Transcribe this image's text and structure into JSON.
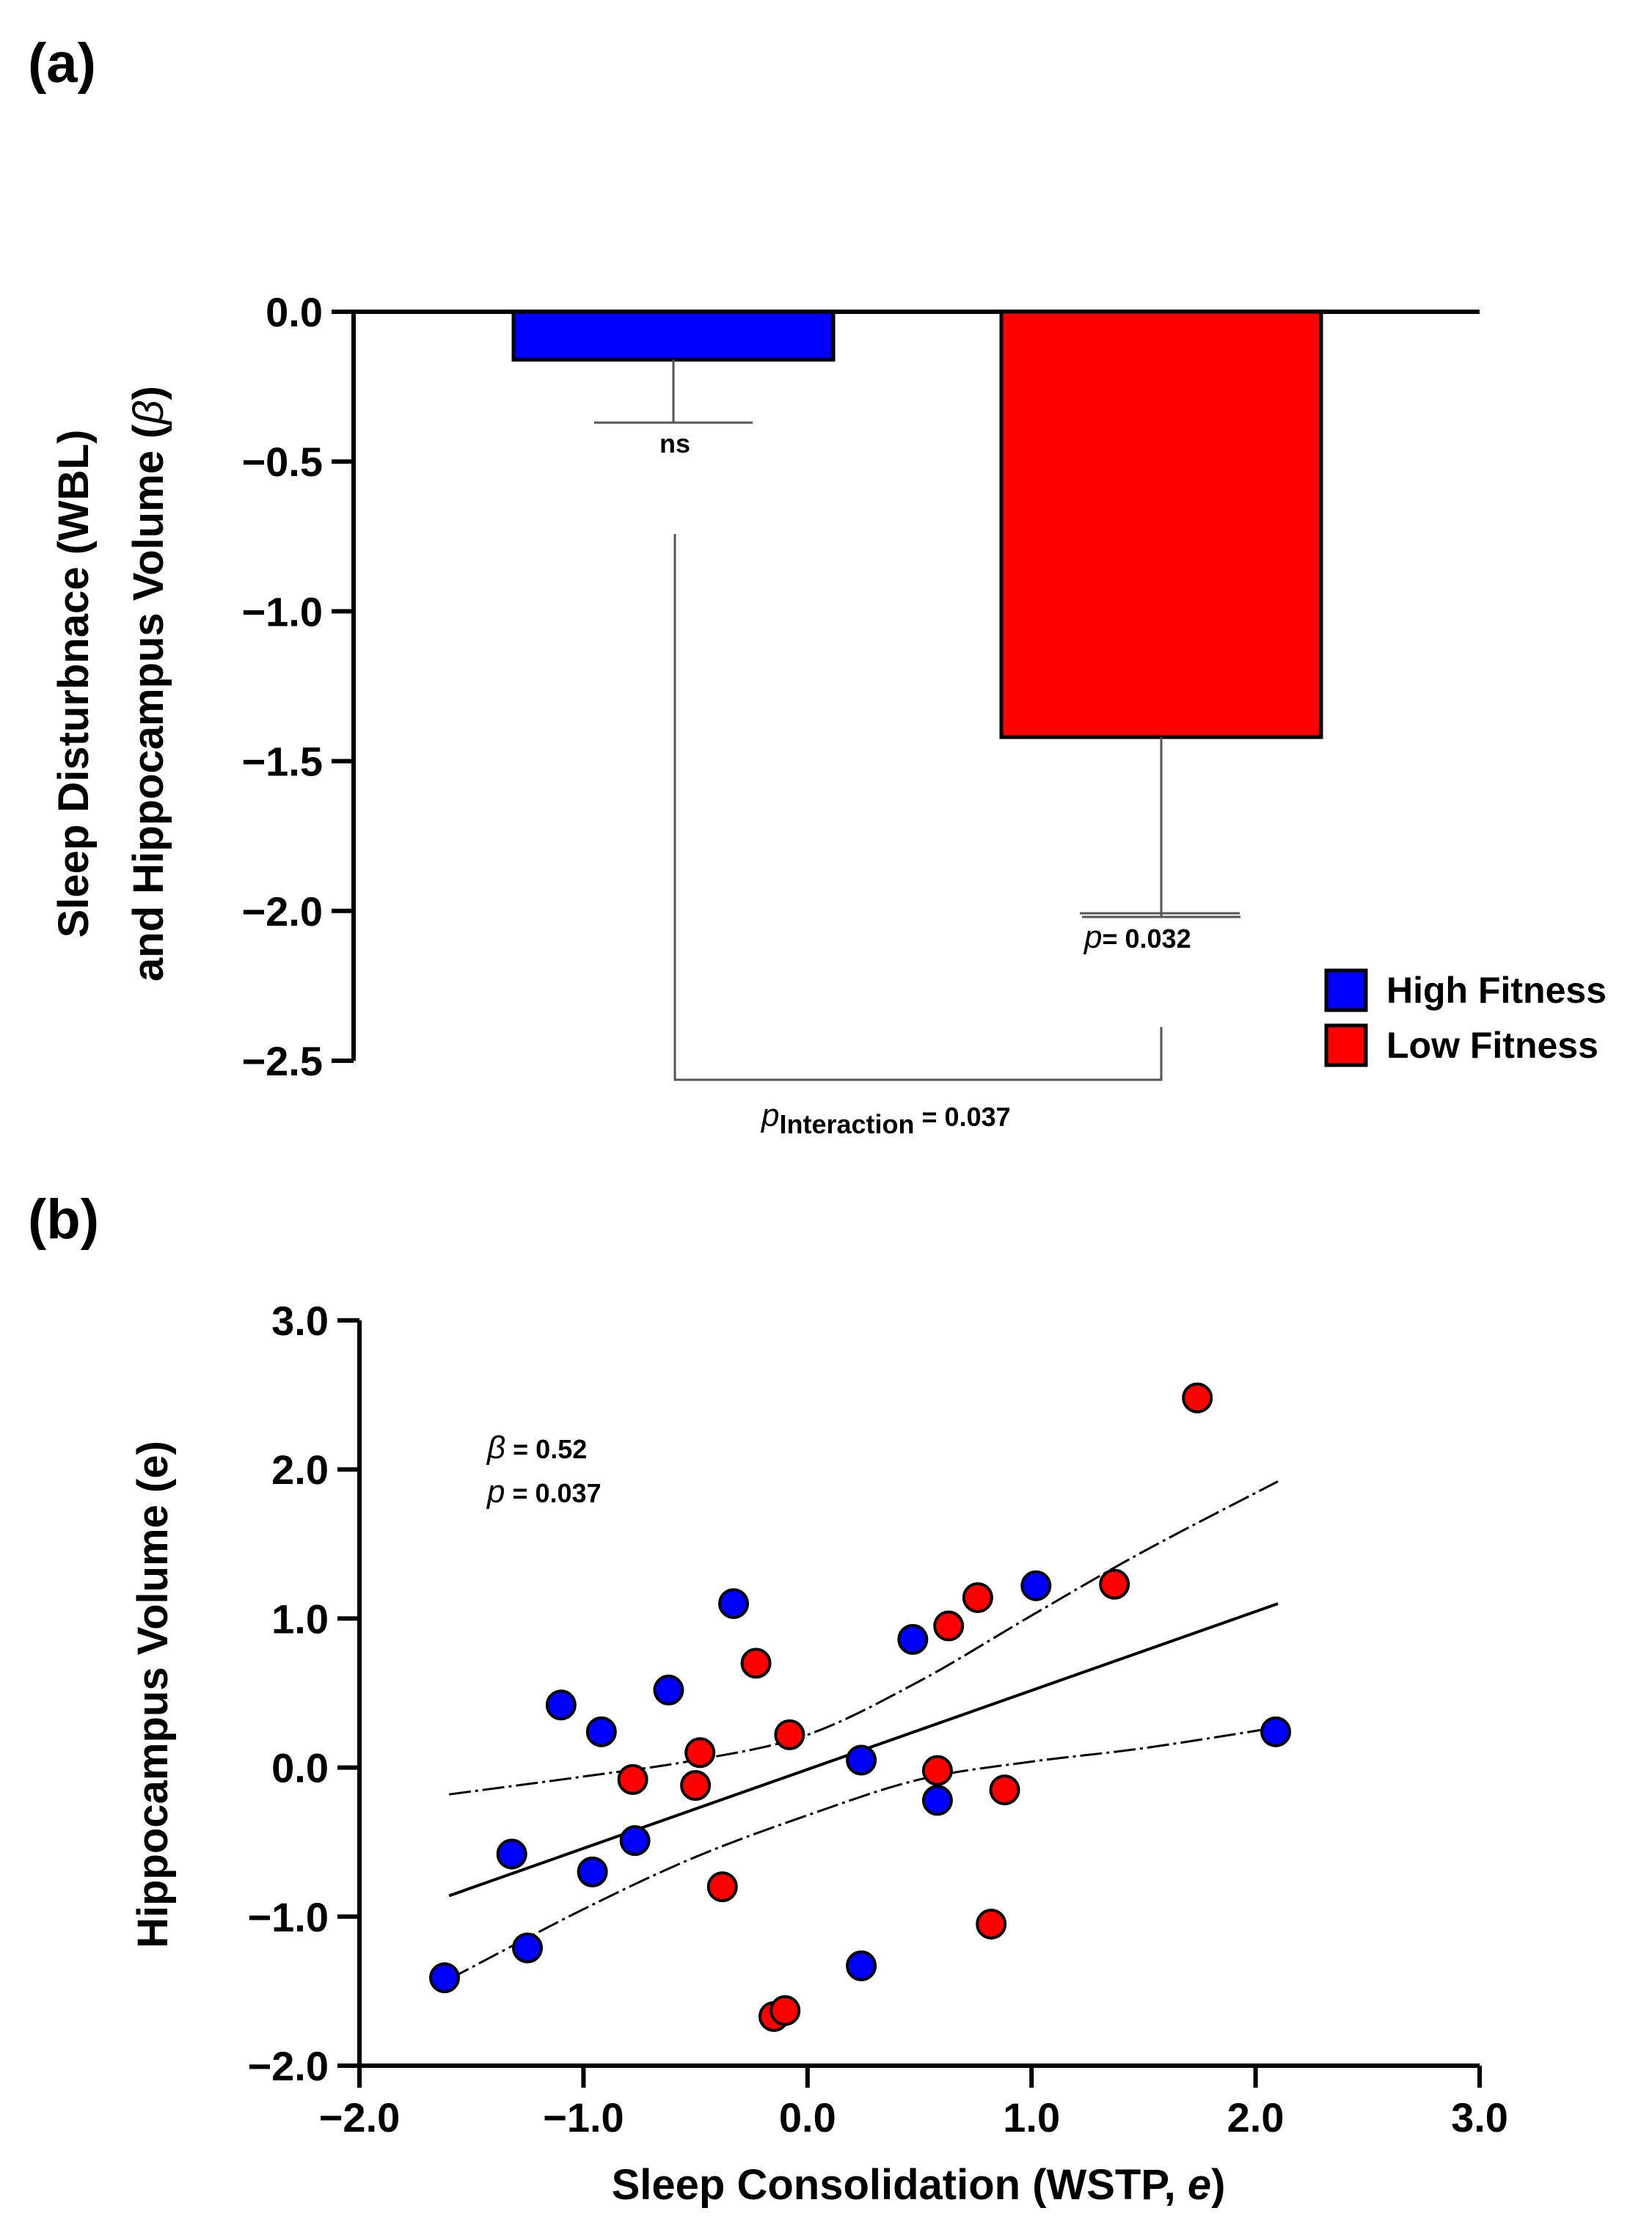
{
  "chart_data": [
    {
      "panel_label": "(a)",
      "type": "bar",
      "ylabel_line1": "Sleep Disturbnace (WBL)",
      "ylabel_line2": "and Hippocampus Volume (",
      "ylabel_symbol": "β",
      "ylabel_close": ")",
      "ylim": [
        -2.5,
        0.0
      ],
      "yticks": [
        "0.0",
        "−0.5",
        "−1.0",
        "−1.5",
        "−2.0",
        "−2.5"
      ],
      "ytick_values": [
        0.0,
        -0.5,
        -1.0,
        -1.5,
        -2.0,
        -2.5
      ],
      "categories": [
        "High Fitness",
        "Low Fitness"
      ],
      "values": [
        -0.16,
        -1.42
      ],
      "errors": [
        0.21,
        0.6
      ],
      "colors": [
        "#0000ff",
        "#ff0000"
      ],
      "bar_annotations": [
        "ns",
        "= 0.032"
      ],
      "bar_annotation_p": [
        "",
        "p"
      ],
      "interaction_p": "p",
      "interaction_sub": "Interaction",
      "interaction_value": " = 0.037",
      "legend": [
        {
          "label": "High Fitness",
          "color": "#0000ff"
        },
        {
          "label": "Low Fitness",
          "color": "#ff0000"
        }
      ]
    },
    {
      "panel_label": "(b)",
      "type": "scatter",
      "xlabel": "Sleep Consolidation (WSTP, ",
      "xlabel_e": "e",
      "xlabel_close": ")",
      "ylabel": "Hippocampus Volume (e)",
      "xlim": [
        -2.0,
        3.0
      ],
      "ylim": [
        -2.0,
        3.0
      ],
      "xticks": [
        "−2.0",
        "−1.0",
        "0.0",
        "1.0",
        "2.0",
        "3.0"
      ],
      "xtick_values": [
        -2.0,
        -1.0,
        0.0,
        1.0,
        2.0,
        3.0
      ],
      "yticks": [
        "3.0",
        "2.0",
        "1.0",
        "0.0",
        "−1.0",
        "−2.0"
      ],
      "ytick_values": [
        3.0,
        2.0,
        1.0,
        0.0,
        -1.0,
        -2.0
      ],
      "annotation_beta": "β",
      "annotation_beta_value": " = 0.52",
      "annotation_p": "p",
      "annotation_p_value": " = 0.037",
      "series": [
        {
          "name": "High Fitness",
          "color": "#0000ff",
          "points": [
            [
              -1.62,
              -1.41
            ],
            [
              -1.25,
              -1.21
            ],
            [
              -1.32,
              -0.58
            ],
            [
              -1.1,
              0.42
            ],
            [
              -0.92,
              0.24
            ],
            [
              -0.96,
              -0.7
            ],
            [
              -0.77,
              -0.49
            ],
            [
              -0.62,
              0.52
            ],
            [
              -0.33,
              1.1
            ],
            [
              0.24,
              0.05
            ],
            [
              0.24,
              -1.33
            ],
            [
              0.47,
              0.86
            ],
            [
              0.58,
              -0.22
            ],
            [
              1.02,
              1.22
            ],
            [
              2.09,
              0.24
            ]
          ]
        },
        {
          "name": "Low Fitness",
          "color": "#ff0000",
          "points": [
            [
              -0.78,
              -0.08
            ],
            [
              -0.48,
              0.1
            ],
            [
              -0.5,
              -0.12
            ],
            [
              -0.38,
              -0.8
            ],
            [
              -0.23,
              0.7
            ],
            [
              -0.08,
              0.22
            ],
            [
              -0.15,
              -1.67
            ],
            [
              -0.1,
              -1.63
            ],
            [
              0.58,
              -0.02
            ],
            [
              0.63,
              0.95
            ],
            [
              0.76,
              1.14
            ],
            [
              0.82,
              -1.05
            ],
            [
              0.88,
              -0.15
            ],
            [
              1.37,
              1.23
            ],
            [
              1.74,
              2.48
            ]
          ]
        }
      ],
      "fit_line": [
        [
          -1.6,
          -0.86
        ],
        [
          2.1,
          1.1
        ]
      ],
      "ci_upper": [
        [
          -1.6,
          -0.18
        ],
        [
          -1.0,
          -0.06
        ],
        [
          -0.5,
          0.05
        ],
        [
          0.0,
          0.22
        ],
        [
          0.5,
          0.58
        ],
        [
          1.0,
          1.02
        ],
        [
          1.5,
          1.45
        ],
        [
          2.1,
          1.92
        ]
      ],
      "ci_lower": [
        [
          -1.6,
          -1.42
        ],
        [
          -1.0,
          -0.95
        ],
        [
          -0.5,
          -0.6
        ],
        [
          0.0,
          -0.32
        ],
        [
          0.5,
          -0.08
        ],
        [
          1.0,
          0.04
        ],
        [
          1.5,
          0.13
        ],
        [
          2.1,
          0.27
        ]
      ]
    }
  ]
}
